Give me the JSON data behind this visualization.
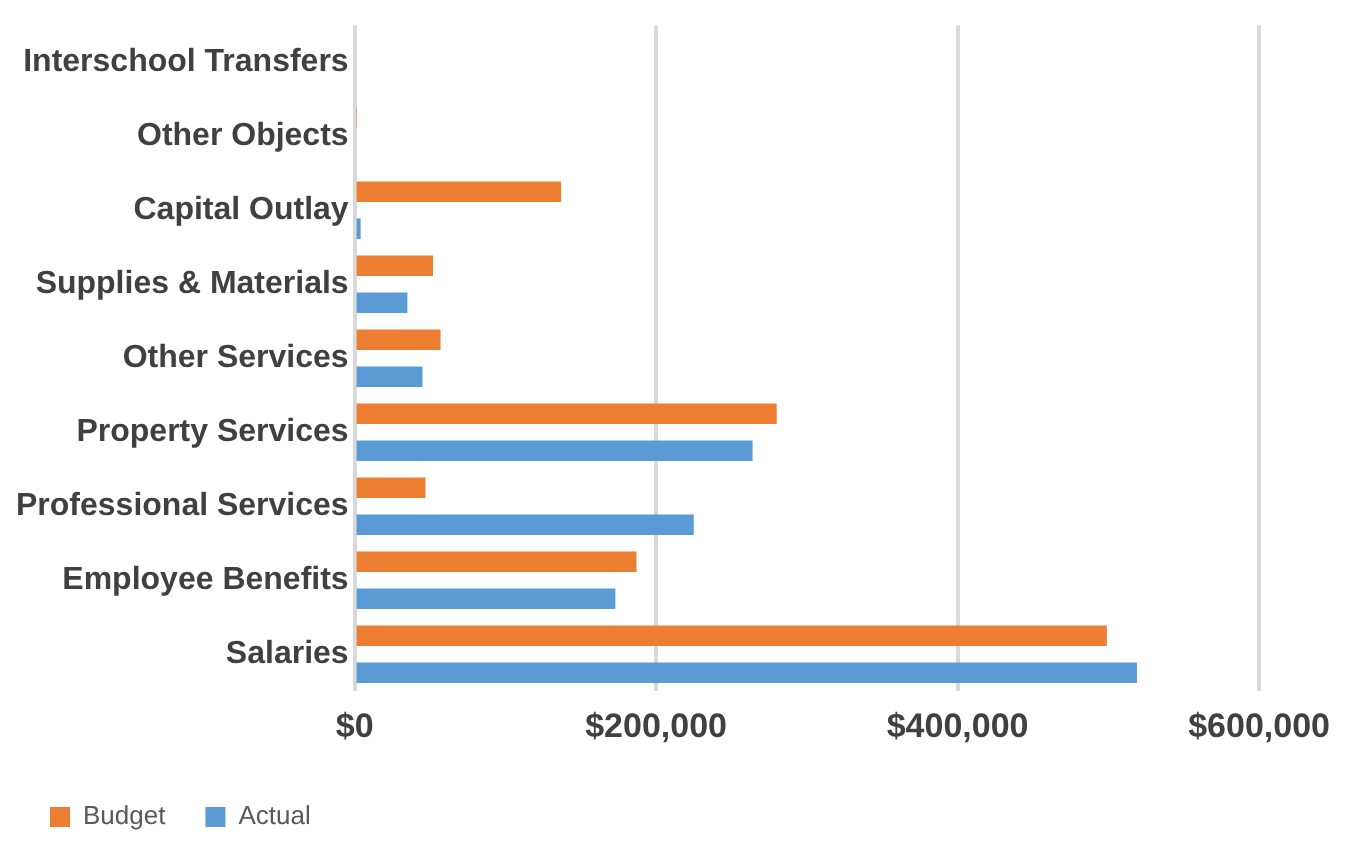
{
  "chart_data": {
    "type": "bar",
    "orientation": "horizontal",
    "categories": [
      "Interschool Transfers",
      "Other Objects",
      "Capital Outlay",
      "Supplies & Materials",
      "Other Services",
      "Property Services",
      "Professional Services",
      "Employee Benefits",
      "Salaries"
    ],
    "series": [
      {
        "name": "Budget",
        "color": "#ed7d31",
        "values": [
          0,
          1000,
          137000,
          52000,
          57000,
          280000,
          47000,
          187000,
          499000
        ]
      },
      {
        "name": "Actual",
        "color": "#5b9bd5",
        "values": [
          0,
          0,
          4000,
          35000,
          45000,
          264000,
          225000,
          173000,
          519000
        ]
      }
    ],
    "xlim": [
      0,
      600000
    ],
    "xticks": [
      {
        "value": 0,
        "label": "$0"
      },
      {
        "value": 200000,
        "label": "$200,000"
      },
      {
        "value": 400000,
        "label": "$400,000"
      },
      {
        "value": 600000,
        "label": "$600,000"
      }
    ],
    "grid": "x",
    "legend": "bottom left"
  }
}
